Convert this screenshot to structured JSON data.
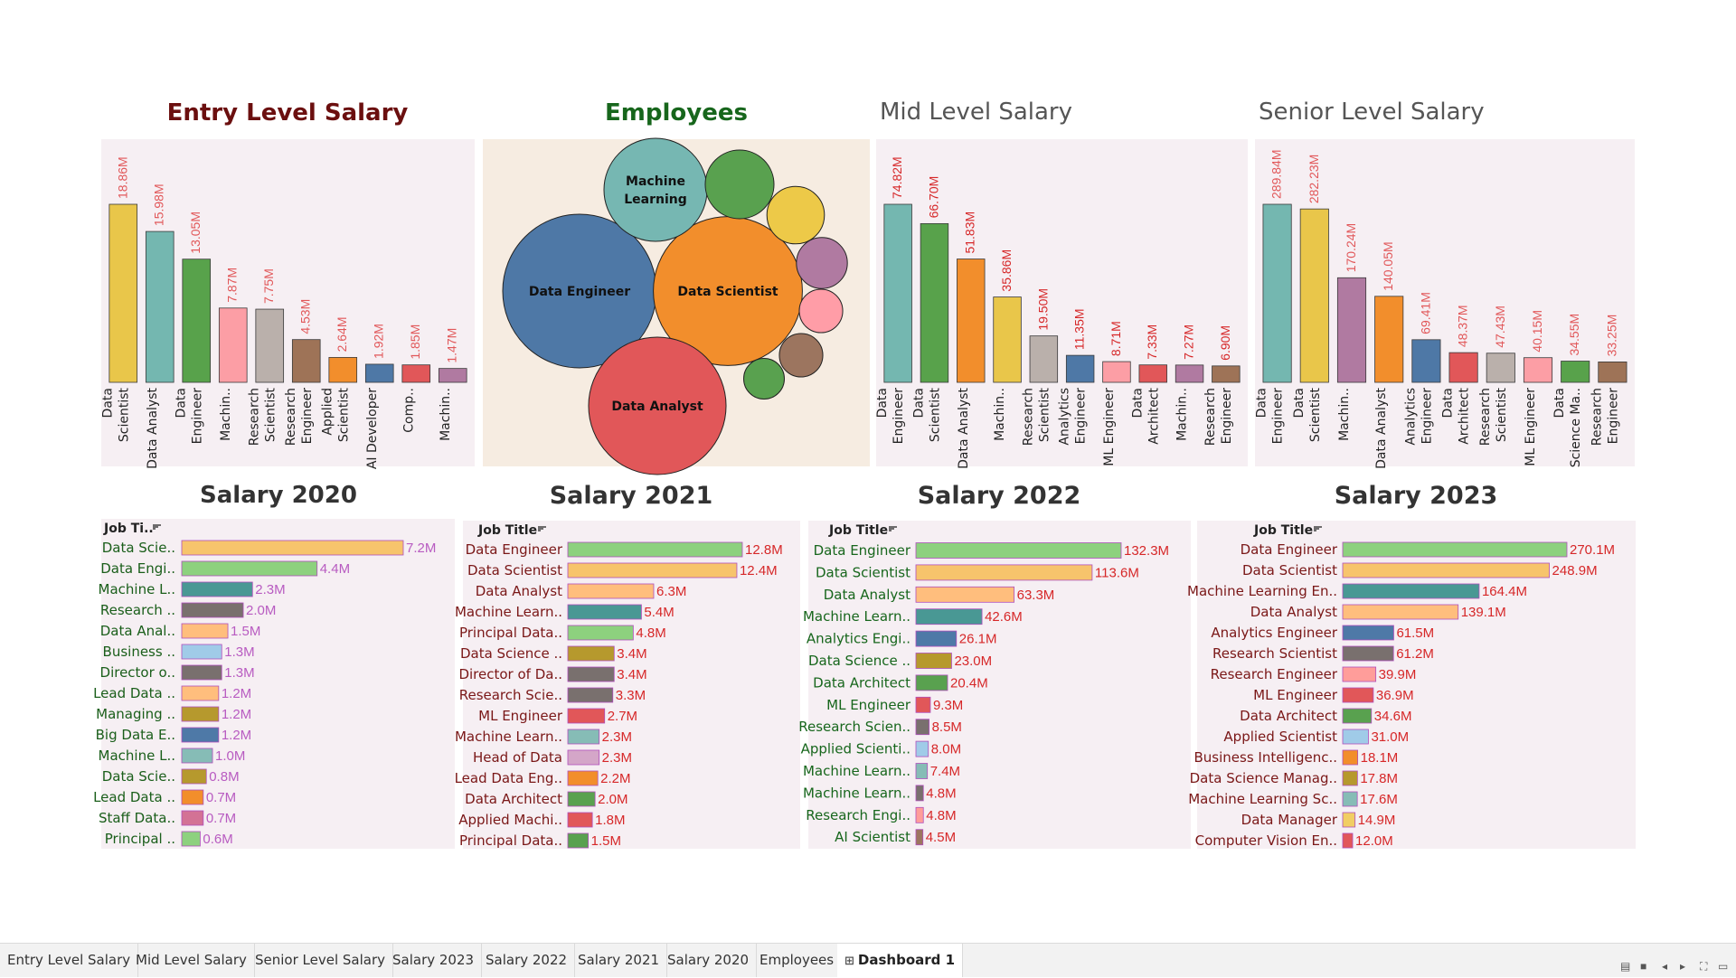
{
  "titles": {
    "entry": "Entry Level Salary",
    "employees": "Employees",
    "mid": "Mid Level Salary",
    "senior": "Senior Level Salary",
    "s2020": "Salary 2020",
    "s2021": "Salary 2021",
    "s2022": "Salary 2022",
    "s2023": "Salary 2023"
  },
  "tabs": [
    "Entry Level Salary",
    "Mid Level Salary",
    "Senior Level Salary",
    "Salary 2023",
    "Salary 2022",
    "Salary 2021",
    "Salary 2020",
    "Employees",
    "Dashboard 1"
  ],
  "active_tab": "Dashboard 1",
  "icons": {
    "sort": "sort-icon",
    "dashboard_tab": "dashboard-grid-icon",
    "controls": [
      "presentation-icon",
      "pause-icon",
      "prev-icon",
      "next-icon",
      "fullscreen-icon",
      "device-icon"
    ]
  },
  "chart_data": [
    {
      "id": "entry",
      "type": "bar",
      "title": "Entry Level Salary",
      "categories": [
        [
          "Data",
          "Scientist"
        ],
        [
          "Data Analyst"
        ],
        [
          "Data",
          "Engineer"
        ],
        [
          "Machin.."
        ],
        [
          "Research",
          "Scientist"
        ],
        [
          "Research",
          "Engineer"
        ],
        [
          "Applied",
          "Scientist"
        ],
        [
          "AI Developer"
        ],
        [
          "Comp.."
        ],
        [
          "Machin.."
        ]
      ],
      "values": [
        18.86,
        15.98,
        13.05,
        7.87,
        7.75,
        4.53,
        2.64,
        1.92,
        1.85,
        1.47
      ],
      "labels": [
        "18.86M",
        "15.98M",
        "13.05M",
        "7.87M",
        "7.75M",
        "4.53M",
        "2.64M",
        "1.92M",
        "1.85M",
        "1.47M"
      ],
      "colors": [
        "#e9c64a",
        "#74b7b0",
        "#58a24b",
        "#fc9ea5",
        "#bab0ab",
        "#9e7357",
        "#f28e2c",
        "#4e78a6",
        "#e15759",
        "#b07aa1"
      ],
      "label_color": "#e15759"
    },
    {
      "id": "mid",
      "type": "bar",
      "title": "Mid Level Salary",
      "categories": [
        [
          "Data",
          "Engineer"
        ],
        [
          "Data",
          "Scientist"
        ],
        [
          "Data Analyst"
        ],
        [
          "Machin.."
        ],
        [
          "Research",
          "Scientist"
        ],
        [
          "Analytics",
          "Engineer"
        ],
        [
          "ML Engineer"
        ],
        [
          "Data",
          "Architect"
        ],
        [
          "Machin.."
        ],
        [
          "Research",
          "Engineer"
        ]
      ],
      "values": [
        74.82,
        66.7,
        51.83,
        35.86,
        19.5,
        11.35,
        8.71,
        7.33,
        7.27,
        6.9
      ],
      "labels": [
        "74.82M",
        "66.70M",
        "51.83M",
        "35.86M",
        "19.50M",
        "11.35M",
        "8.71M",
        "7.33M",
        "7.27M",
        "6.90M"
      ],
      "colors": [
        "#74b7b0",
        "#58a24b",
        "#f28e2c",
        "#e9c64a",
        "#bab0ab",
        "#4e78a6",
        "#fc9ea5",
        "#e15759",
        "#b07aa1",
        "#9e7357"
      ],
      "label_color": "#d62728"
    },
    {
      "id": "senior",
      "type": "bar",
      "title": "Senior Level Salary",
      "categories": [
        [
          "Data",
          "Engineer"
        ],
        [
          "Data",
          "Scientist"
        ],
        [
          "Machin.."
        ],
        [
          "Data Analyst"
        ],
        [
          "Analytics",
          "Engineer"
        ],
        [
          "Data",
          "Architect"
        ],
        [
          "Research",
          "Scientist"
        ],
        [
          "ML Engineer"
        ],
        [
          "Data",
          "Science Ma.."
        ],
        [
          "Research",
          "Engineer"
        ]
      ],
      "values": [
        289.84,
        282.23,
        170.24,
        140.05,
        69.41,
        48.37,
        47.43,
        40.15,
        34.55,
        33.25
      ],
      "labels": [
        "289.84M",
        "282.23M",
        "170.24M",
        "140.05M",
        "69.41M",
        "48.37M",
        "47.43M",
        "40.15M",
        "34.55M",
        "33.25M"
      ],
      "colors": [
        "#74b7b0",
        "#e9c64a",
        "#b07aa1",
        "#f28e2c",
        "#4e78a6",
        "#e15759",
        "#bab0ab",
        "#fc9ea5",
        "#58a24b",
        "#9e7357"
      ],
      "label_color": "#e15759"
    },
    {
      "id": "employees",
      "type": "bubble",
      "title": "Employees",
      "bubbles": [
        {
          "label": "Data Engineer",
          "size": 1.0,
          "color": "#4e78a6"
        },
        {
          "label": "Data Scientist",
          "size": 0.94,
          "color": "#f28e2c"
        },
        {
          "label": "Data Analyst",
          "size": 0.8,
          "color": "#e15759"
        },
        {
          "label": "Machine Learning",
          "size": 0.45,
          "color": "#76b7b2"
        },
        {
          "label": "",
          "size": 0.2,
          "color": "#59a14f"
        },
        {
          "label": "",
          "size": 0.14,
          "color": "#edc948"
        },
        {
          "label": "",
          "size": 0.11,
          "color": "#b07aa1"
        },
        {
          "label": "",
          "size": 0.08,
          "color": "#ff9da7"
        },
        {
          "label": "",
          "size": 0.08,
          "color": "#9c755f"
        },
        {
          "label": "",
          "size": 0.07,
          "color": "#59a14f"
        }
      ]
    },
    {
      "id": "s2020",
      "type": "hbar",
      "title": "Salary 2020",
      "header": "Job Ti..",
      "categories": [
        "Data Scie..",
        "Data Engi..",
        "Machine L..",
        "Research ..",
        "Data Anal..",
        "Business ..",
        "Director o..",
        "Lead Data ..",
        "Managing ..",
        "Big Data E..",
        "Machine L..",
        "Data Scie..",
        "Lead Data ..",
        "Staff Data..",
        "Principal .."
      ],
      "values": [
        7.2,
        4.4,
        2.3,
        2.0,
        1.5,
        1.3,
        1.3,
        1.2,
        1.2,
        1.2,
        1.0,
        0.8,
        0.7,
        0.7,
        0.6
      ],
      "labels": [
        "7.2M",
        "4.4M",
        "2.3M",
        "2.0M",
        "1.5M",
        "1.3M",
        "1.3M",
        "1.2M",
        "1.2M",
        "1.2M",
        "1.0M",
        "0.8M",
        "0.7M",
        "0.7M",
        "0.6M"
      ],
      "colors": [
        "#f7c46c",
        "#8dd17e",
        "#499894",
        "#79706e",
        "#ffbe7d",
        "#a0cbe8",
        "#79706e",
        "#ffbe7d",
        "#b6992d",
        "#4e79a7",
        "#86bcb6",
        "#b6992d",
        "#f28e2b",
        "#d37295",
        "#8dd17e"
      ],
      "label_color": "#b85bc1"
    },
    {
      "id": "s2021",
      "type": "hbar",
      "title": "Salary 2021",
      "header": "Job Title",
      "categories": [
        "Data Engineer",
        "Data Scientist",
        "Data Analyst",
        "Machine Learn..",
        "Principal Data..",
        "Data Science ..",
        "Director of Da..",
        "Research Scie..",
        "ML Engineer",
        "Machine Learn..",
        "Head of Data",
        "Lead Data Eng..",
        "Data Architect",
        "Applied Machi..",
        "Principal Data.."
      ],
      "values": [
        12.8,
        12.4,
        6.3,
        5.4,
        4.8,
        3.4,
        3.4,
        3.3,
        2.7,
        2.3,
        2.3,
        2.2,
        2.0,
        1.8,
        1.5
      ],
      "labels": [
        "12.8M",
        "12.4M",
        "6.3M",
        "5.4M",
        "4.8M",
        "3.4M",
        "3.4M",
        "3.3M",
        "2.7M",
        "2.3M",
        "2.3M",
        "2.2M",
        "2.0M",
        "1.8M",
        "1.5M"
      ],
      "colors": [
        "#8dd17e",
        "#f7c46c",
        "#ffbe7d",
        "#499894",
        "#8dd17e",
        "#b6992d",
        "#79706e",
        "#79706e",
        "#e15759",
        "#86bcb6",
        "#d4a6c8",
        "#f28e2b",
        "#59a14f",
        "#e15759",
        "#59a14f"
      ],
      "label_color": "#d62728"
    },
    {
      "id": "s2022",
      "type": "hbar",
      "title": "Salary 2022",
      "header": "Job Title",
      "categories": [
        "Data Engineer",
        "Data Scientist",
        "Data Analyst",
        "Machine Learn..",
        "Analytics Engi..",
        "Data Science ..",
        "Data Architect",
        "ML Engineer",
        "Research Scien..",
        "Applied Scienti..",
        "Machine Learn..",
        "Machine Learn..",
        "Research Engi..",
        "AI Scientist"
      ],
      "values": [
        132.3,
        113.6,
        63.3,
        42.6,
        26.1,
        23.0,
        20.4,
        9.3,
        8.5,
        8.0,
        7.4,
        4.8,
        4.8,
        4.5
      ],
      "labels": [
        "132.3M",
        "113.6M",
        "63.3M",
        "42.6M",
        "26.1M",
        "23.0M",
        "20.4M",
        "9.3M",
        "8.5M",
        "8.0M",
        "7.4M",
        "4.8M",
        "4.8M",
        "4.5M"
      ],
      "colors": [
        "#8dd17e",
        "#f7c46c",
        "#ffbe7d",
        "#499894",
        "#4e79a7",
        "#b6992d",
        "#59a14f",
        "#e15759",
        "#79706e",
        "#a0cbe8",
        "#86bcb6",
        "#79706e",
        "#ff9d9a",
        "#9c755f"
      ],
      "label_color": "#d62728"
    },
    {
      "id": "s2023",
      "type": "hbar",
      "title": "Salary 2023",
      "header": "Job Title",
      "categories": [
        "Data Engineer",
        "Data Scientist",
        "Machine Learning En..",
        "Data Analyst",
        "Analytics Engineer",
        "Research Scientist",
        "Research Engineer",
        "ML Engineer",
        "Data Architect",
        "Applied Scientist",
        "Business Intelligenc..",
        "Data Science Manag..",
        "Machine Learning Sc..",
        "Data Manager",
        "Computer Vision En.."
      ],
      "values": [
        270.1,
        248.9,
        164.4,
        139.1,
        61.5,
        61.2,
        39.9,
        36.9,
        34.6,
        31.0,
        18.1,
        17.8,
        17.6,
        14.9,
        12.0
      ],
      "labels": [
        "270.1M",
        "248.9M",
        "164.4M",
        "139.1M",
        "61.5M",
        "61.2M",
        "39.9M",
        "36.9M",
        "34.6M",
        "31.0M",
        "18.1M",
        "17.8M",
        "17.6M",
        "14.9M",
        "12.0M"
      ],
      "colors": [
        "#8dd17e",
        "#f7c46c",
        "#499894",
        "#ffbe7d",
        "#4e79a7",
        "#79706e",
        "#ff9d9a",
        "#e15759",
        "#59a14f",
        "#a0cbe8",
        "#f28e2b",
        "#b6992d",
        "#86bcb6",
        "#f1ce63",
        "#e15759"
      ],
      "label_color": "#d62728"
    }
  ]
}
